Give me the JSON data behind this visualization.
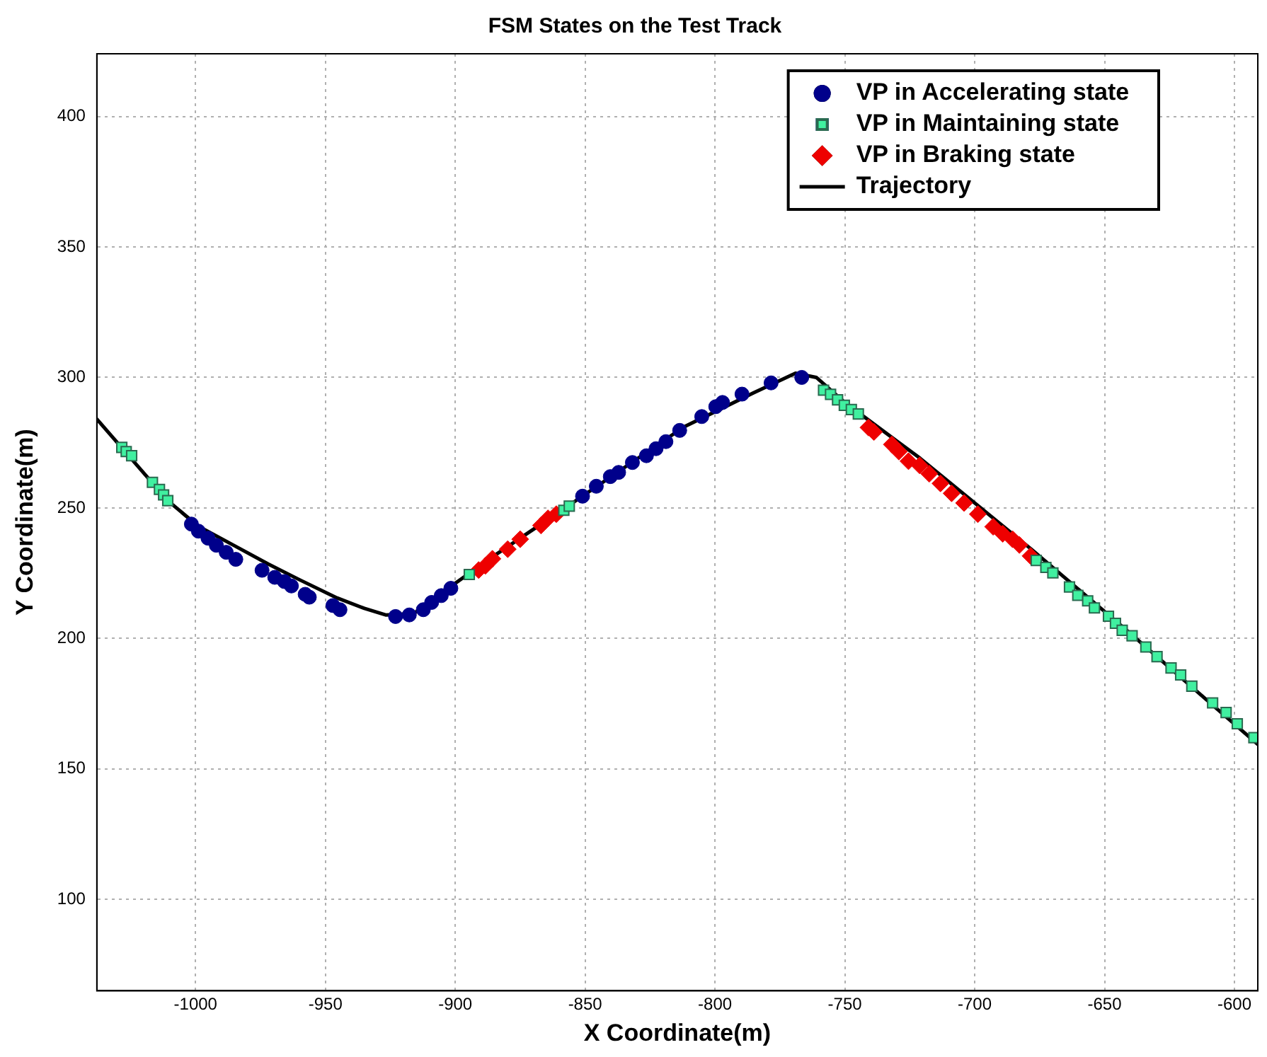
{
  "chart_data": {
    "type": "scatter",
    "title": "FSM States on the Test Track",
    "xlabel": "X Coordinate(m)",
    "ylabel": "Y Coordinate(m)",
    "xlim": [
      -1038,
      -591
    ],
    "xticks": [
      -1000,
      -950,
      -900,
      -850,
      -800,
      -750,
      -700,
      -650,
      -600
    ],
    "ylim": [
      65,
      424
    ],
    "yticks": [
      100,
      150,
      200,
      250,
      300,
      350,
      400
    ],
    "grid": true,
    "legend": "top right",
    "series": [
      {
        "name": "VP in Accelerating state",
        "marker": "circle",
        "color": "#00008b",
        "x": [
          -1001.6,
          -998.9,
          -995.2,
          -992.0,
          -988.2,
          -984.5,
          -974.4,
          -969.5,
          -965.8,
          -963.1,
          -957.8,
          -956.2,
          -947.1,
          -944.4,
          -923.0,
          -917.7,
          -912.3,
          -909.1,
          -905.4,
          -901.7,
          -851.0,
          -845.7,
          -840.3,
          -837.1,
          -831.8,
          -826.4,
          -822.7,
          -818.9,
          -813.6,
          -805.1,
          -799.7,
          -797.1,
          -789.6,
          -778.4,
          -766.6
        ],
        "values": [
          243.8,
          241.1,
          238.4,
          235.7,
          233.0,
          230.3,
          226.1,
          223.4,
          221.8,
          220.1,
          216.9,
          215.8,
          212.6,
          211.0,
          208.4,
          209.0,
          211.0,
          213.8,
          216.4,
          219.2,
          254.5,
          258.3,
          262.0,
          263.6,
          267.4,
          270.0,
          272.7,
          275.4,
          279.7,
          285.0,
          288.8,
          290.4,
          293.6,
          297.9,
          300.0
        ]
      },
      {
        "name": "VP in Maintaining state",
        "marker": "square",
        "color": "#40f0a0",
        "x": [
          -1028.4,
          -1026.7,
          -1024.6,
          -1016.6,
          -1013.9,
          -1012.3,
          -1010.7,
          -894.6,
          -858.2,
          -856.1,
          -758.2,
          -755.5,
          -752.8,
          -750.2,
          -747.5,
          -744.8,
          -676.3,
          -672.6,
          -669.9,
          -663.5,
          -660.3,
          -656.5,
          -653.9,
          -648.5,
          -645.8,
          -643.2,
          -639.4,
          -634.1,
          -629.8,
          -624.4,
          -620.7,
          -616.4,
          -608.4,
          -603.2,
          -598.9,
          -592.5
        ],
        "values": [
          273.2,
          271.6,
          270.0,
          259.8,
          257.1,
          255.0,
          252.8,
          224.5,
          249.1,
          250.7,
          295.1,
          293.5,
          291.4,
          289.3,
          287.7,
          286.0,
          229.9,
          227.2,
          225.1,
          219.7,
          216.5,
          214.4,
          211.7,
          208.5,
          205.8,
          203.1,
          201.0,
          196.7,
          193.0,
          188.7,
          186.0,
          181.7,
          175.3,
          171.6,
          167.3,
          162.0
        ]
      },
      {
        "name": "VP in Braking state",
        "marker": "diamond",
        "color": "#ee0000",
        "x": [
          -891.0,
          -888.4,
          -885.7,
          -879.8,
          -875.0,
          -867.0,
          -864.3,
          -861.1,
          -740.9,
          -738.8,
          -731.9,
          -729.2,
          -725.5,
          -721.2,
          -717.5,
          -713.2,
          -708.9,
          -704.1,
          -698.8,
          -692.9,
          -689.2,
          -685.4,
          -682.8,
          -678.5
        ],
        "values": [
          226.2,
          227.8,
          230.5,
          234.2,
          238.0,
          243.3,
          246.0,
          247.6,
          280.8,
          279.1,
          274.3,
          271.6,
          267.9,
          266.3,
          263.1,
          259.4,
          255.6,
          251.9,
          247.6,
          242.8,
          240.1,
          238.0,
          235.8,
          231.6
        ]
      },
      {
        "name": "Trajectory",
        "type": "line",
        "marker": "none",
        "color": "#000000",
        "x": [
          -1038,
          -1010.7,
          -999,
          -985,
          -972,
          -960,
          -945.5,
          -935,
          -926.8,
          -916,
          -902.7,
          -886.8,
          -854.7,
          -812,
          -785.3,
          -769,
          -761,
          -750,
          -721,
          -678,
          -641,
          -591
        ],
        "values": [
          284,
          252.8,
          243,
          235.5,
          228.5,
          222.5,
          215.5,
          211.5,
          209,
          209.5,
          219.2,
          230.5,
          252,
          281,
          294,
          301.6,
          300,
          290.4,
          269,
          234,
          202.7,
          159.4
        ]
      }
    ]
  }
}
